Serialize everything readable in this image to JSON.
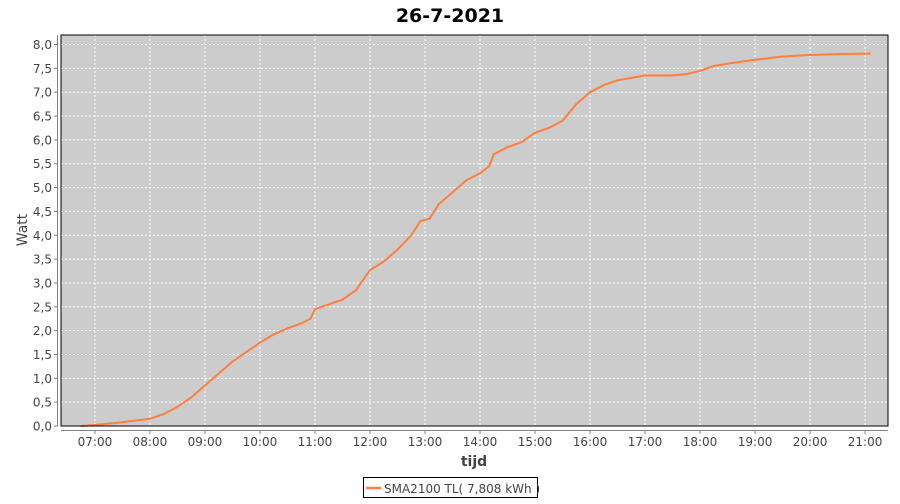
{
  "chart_data": {
    "type": "line",
    "title": "26-7-2021",
    "xlabel": "tijd",
    "ylabel": "Watt",
    "xlim": [
      "06:23",
      "21:25"
    ],
    "ylim": [
      0,
      8.2
    ],
    "grid": true,
    "legend_position": "bottom",
    "x_ticks": [
      "07:00",
      "08:00",
      "09:00",
      "10:00",
      "11:00",
      "12:00",
      "13:00",
      "14:00",
      "15:00",
      "16:00",
      "17:00",
      "18:00",
      "19:00",
      "20:00",
      "21:00"
    ],
    "y_ticks": [
      "0,0",
      "0,5",
      "1,0",
      "1,5",
      "2,0",
      "2,5",
      "3,0",
      "3,5",
      "4,0",
      "4,5",
      "5,0",
      "5,5",
      "6,0",
      "6,5",
      "7,0",
      "7,5",
      "8,0"
    ],
    "colors": {
      "series": "#ff7f3f",
      "plot_bg": "#cccccc",
      "grid": "#ffffff"
    },
    "series": [
      {
        "name": "SMA2100 TL( 7,808 kWh )",
        "x": [
          "06:45",
          "07:00",
          "07:30",
          "08:00",
          "08:15",
          "08:30",
          "08:45",
          "09:00",
          "09:15",
          "09:30",
          "09:45",
          "10:00",
          "10:15",
          "10:30",
          "10:45",
          "10:55",
          "11:00",
          "11:15",
          "11:30",
          "11:45",
          "11:50",
          "12:00",
          "12:15",
          "12:30",
          "12:45",
          "12:55",
          "13:05",
          "13:15",
          "13:30",
          "13:45",
          "14:00",
          "14:10",
          "14:15",
          "14:30",
          "14:45",
          "15:00",
          "15:15",
          "15:30",
          "15:45",
          "16:00",
          "16:15",
          "16:30",
          "16:45",
          "17:00",
          "17:30",
          "17:45",
          "18:00",
          "18:15",
          "18:30",
          "19:00",
          "19:30",
          "20:00",
          "20:30",
          "21:00",
          "21:05"
        ],
        "values": [
          0.0,
          0.02,
          0.08,
          0.15,
          0.25,
          0.4,
          0.6,
          0.85,
          1.1,
          1.35,
          1.55,
          1.75,
          1.92,
          2.05,
          2.15,
          2.25,
          2.45,
          2.55,
          2.65,
          2.85,
          3.0,
          3.27,
          3.45,
          3.7,
          4.0,
          4.3,
          4.35,
          4.65,
          4.9,
          5.15,
          5.3,
          5.45,
          5.7,
          5.85,
          5.95,
          6.15,
          6.25,
          6.4,
          6.75,
          7.0,
          7.15,
          7.25,
          7.3,
          7.35,
          7.35,
          7.38,
          7.45,
          7.55,
          7.6,
          7.68,
          7.75,
          7.78,
          7.8,
          7.81,
          7.81
        ]
      }
    ]
  }
}
